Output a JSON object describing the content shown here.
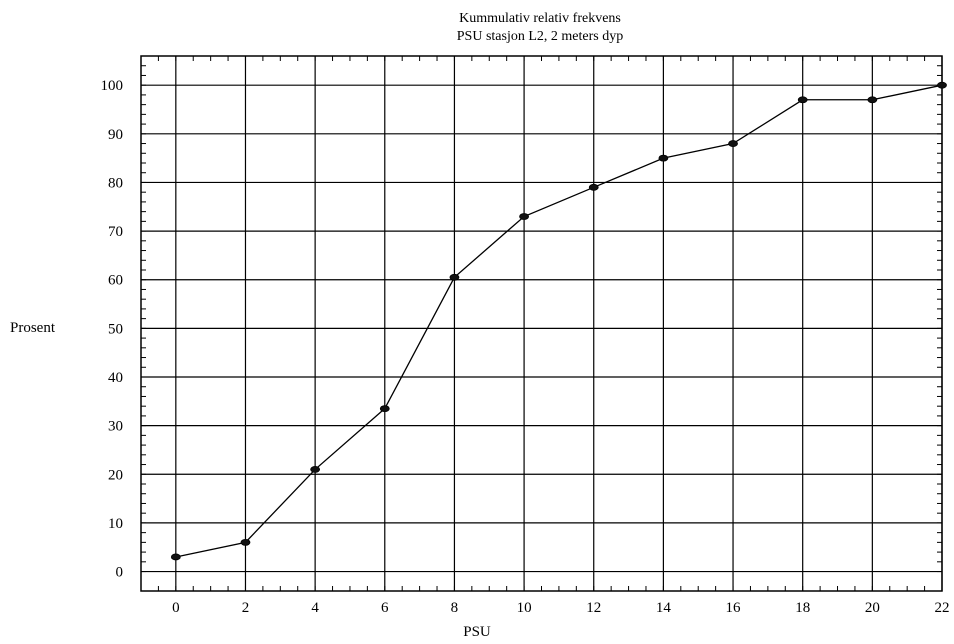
{
  "chart_data": {
    "type": "line",
    "title": "Kummulativ relativ frekvens",
    "subtitle": "PSU stasjon L2, 2 meters dyp",
    "xlabel": "PSU",
    "ylabel": "Prosent",
    "x": [
      0,
      2,
      4,
      6,
      8,
      10,
      12,
      14,
      16,
      18,
      20,
      22
    ],
    "series": [
      {
        "values": [
          3,
          6,
          21,
          33.5,
          60.5,
          73,
          79,
          85,
          88,
          97,
          97,
          100
        ]
      }
    ],
    "xticks": [
      "0",
      "2",
      "4",
      "6",
      "8",
      "10",
      "12",
      "14",
      "16",
      "18",
      "20",
      "22"
    ],
    "yticks": [
      "0",
      "10",
      "20",
      "30",
      "40",
      "50",
      "60",
      "70",
      "80",
      "90",
      "100"
    ],
    "xlim": [
      -1,
      22
    ],
    "ylim": [
      -4,
      106
    ],
    "grid": true,
    "legend": "none",
    "colors": {
      "line": "#000000",
      "grid": "#000000"
    }
  }
}
